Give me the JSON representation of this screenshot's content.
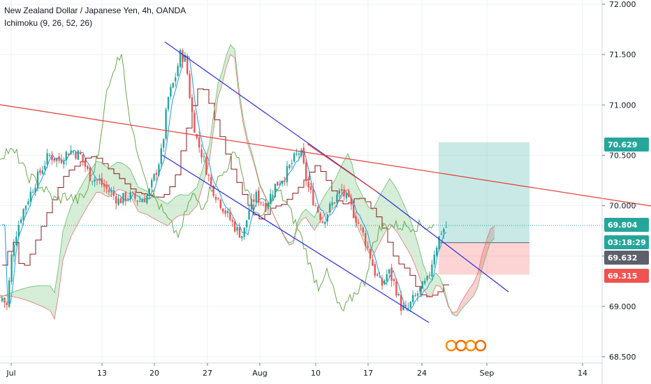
{
  "header": {
    "symbol_line": "New Zealand Dollar / Japanese Yen, 4h, OANDA",
    "indicator_line": "Ichimoku (9, 26, 52, 26)"
  },
  "chart_data": {
    "type": "candlestick",
    "y_ticks": [
      "72.000",
      "71.500",
      "71.000",
      "70.500",
      "70.000",
      "69.500",
      "69.000",
      "68.500"
    ],
    "x_ticks": [
      "Jul",
      "13",
      "20",
      "27",
      "Aug",
      "10",
      "17",
      "24",
      "Sep",
      "14"
    ],
    "ylim": [
      68.5,
      72.0
    ],
    "price_labels": [
      {
        "text": "70.629",
        "value": 70.629,
        "color": "#26a69a"
      },
      {
        "text": "69.804",
        "value": 69.804,
        "color": "#26a69a"
      },
      {
        "text": "03:18:29",
        "value": 69.7,
        "color": "#26a69a"
      },
      {
        "text": "69.632",
        "value": 69.632,
        "color": "#5d606b"
      },
      {
        "text": "69.315",
        "value": 69.315,
        "color": "#ef5350"
      }
    ],
    "current_price": 69.804,
    "position": {
      "entry": 69.632,
      "target": 70.629,
      "stop": 69.315
    },
    "colors": {
      "up": "#26a69a",
      "down": "#ef5350",
      "tenkan": "#2196f3",
      "kijun": "#8b1a1a",
      "chikou": "#6aa84f",
      "cloud_bull": "#a5d6a7",
      "cloud_bear": "#ef9a9a",
      "channel": "#2a2ae0",
      "trendline": "#e53935"
    }
  }
}
